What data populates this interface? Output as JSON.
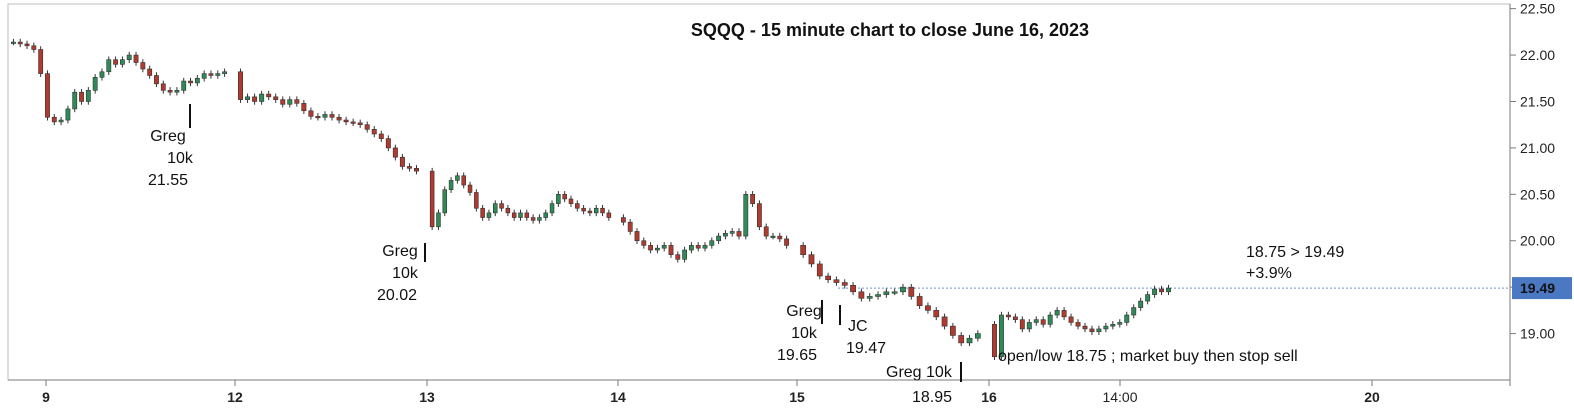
{
  "chart_data": {
    "type": "candlestick",
    "title": "SQQQ - 15 minute chart to close June 16, 2023",
    "ylim": [
      18.5,
      22.55
    ],
    "y_ticks": [
      "22.50",
      "22.00",
      "21.50",
      "21.00",
      "20.50",
      "20.00",
      "19.50",
      "19.00"
    ],
    "x_tick_labels": [
      "9",
      "12",
      "13",
      "14",
      "15",
      "16",
      "14:00",
      "20"
    ],
    "current_price": {
      "label": "19.49",
      "value": 19.49,
      "color": "#4a78c2"
    },
    "colors": {
      "up": "#2e8b57",
      "down": "#b03a2e",
      "grid": "#e6e6e6",
      "price_line": "#6f95d6"
    },
    "series": [
      {
        "date": "9",
        "closes": [
          22.14,
          22.12,
          22.1,
          22.06,
          21.8,
          21.33,
          21.28,
          21.3,
          21.42,
          21.6,
          21.5,
          21.62,
          21.76,
          21.82,
          21.95,
          21.9,
          21.95,
          22.0,
          21.92,
          21.85,
          21.78,
          21.69,
          21.62,
          21.6,
          21.62,
          21.72,
          21.7,
          21.75,
          21.8,
          21.78,
          21.8,
          21.82
        ]
      },
      {
        "date": "12",
        "closes": [
          21.52,
          21.55,
          21.5,
          21.58,
          21.55,
          21.52,
          21.47,
          21.52,
          21.48,
          21.4,
          21.34,
          21.33,
          21.36,
          21.33,
          21.3,
          21.28,
          21.27,
          21.25,
          21.2,
          21.15,
          21.1,
          21.0,
          20.9,
          20.8,
          20.78,
          20.75
        ]
      },
      {
        "date": "13",
        "closes": [
          20.15,
          20.3,
          20.55,
          20.65,
          20.7,
          20.6,
          20.52,
          20.35,
          20.25,
          20.3,
          20.4,
          20.35,
          20.3,
          20.25,
          20.3,
          20.25,
          20.22,
          20.25,
          20.3,
          20.4,
          20.5,
          20.45,
          20.4,
          20.35,
          20.32,
          20.3,
          20.35,
          20.3,
          20.25
        ]
      },
      {
        "date": "14",
        "closes": [
          20.2,
          20.1,
          20.0,
          19.95,
          19.9,
          19.92,
          19.95,
          19.85,
          19.8,
          19.9,
          19.95,
          19.92,
          19.95,
          20.0,
          20.05,
          20.08,
          20.1,
          20.05,
          20.5,
          20.4,
          20.15,
          20.05,
          20.05,
          20.02,
          19.95
        ]
      },
      {
        "date": "15",
        "closes": [
          19.85,
          19.75,
          19.62,
          19.58,
          19.55,
          19.52,
          19.45,
          19.38,
          19.4,
          19.42,
          19.45,
          19.45,
          19.5,
          19.4,
          19.3,
          19.25,
          19.18,
          19.08,
          18.98,
          18.9,
          18.95,
          19.0
        ]
      },
      {
        "date": "16",
        "closes": [
          18.75,
          19.2,
          19.18,
          19.15,
          19.05,
          19.12,
          19.15,
          19.1,
          19.2,
          19.25,
          19.18,
          19.12,
          19.08,
          19.05,
          19.02,
          19.05,
          19.08,
          19.1,
          19.12,
          19.2,
          19.28,
          19.35,
          19.42,
          19.48,
          19.45,
          19.49
        ]
      }
    ],
    "annotations": [
      {
        "lines": [
          "Greg",
          "10k",
          "21.55"
        ]
      },
      {
        "lines": [
          "Greg",
          "10k",
          "20.02"
        ]
      },
      {
        "lines": [
          "Greg",
          "10k",
          "19.65"
        ]
      },
      {
        "lines": [
          "JC",
          "19.47"
        ]
      },
      {
        "lines": [
          "Greg 10k",
          "18.95"
        ]
      },
      {
        "lines": [
          "open/low 18.75 ; market buy then stop sell"
        ]
      },
      {
        "lines": [
          "18.75 > 19.49",
          "+3.9%"
        ]
      }
    ]
  }
}
